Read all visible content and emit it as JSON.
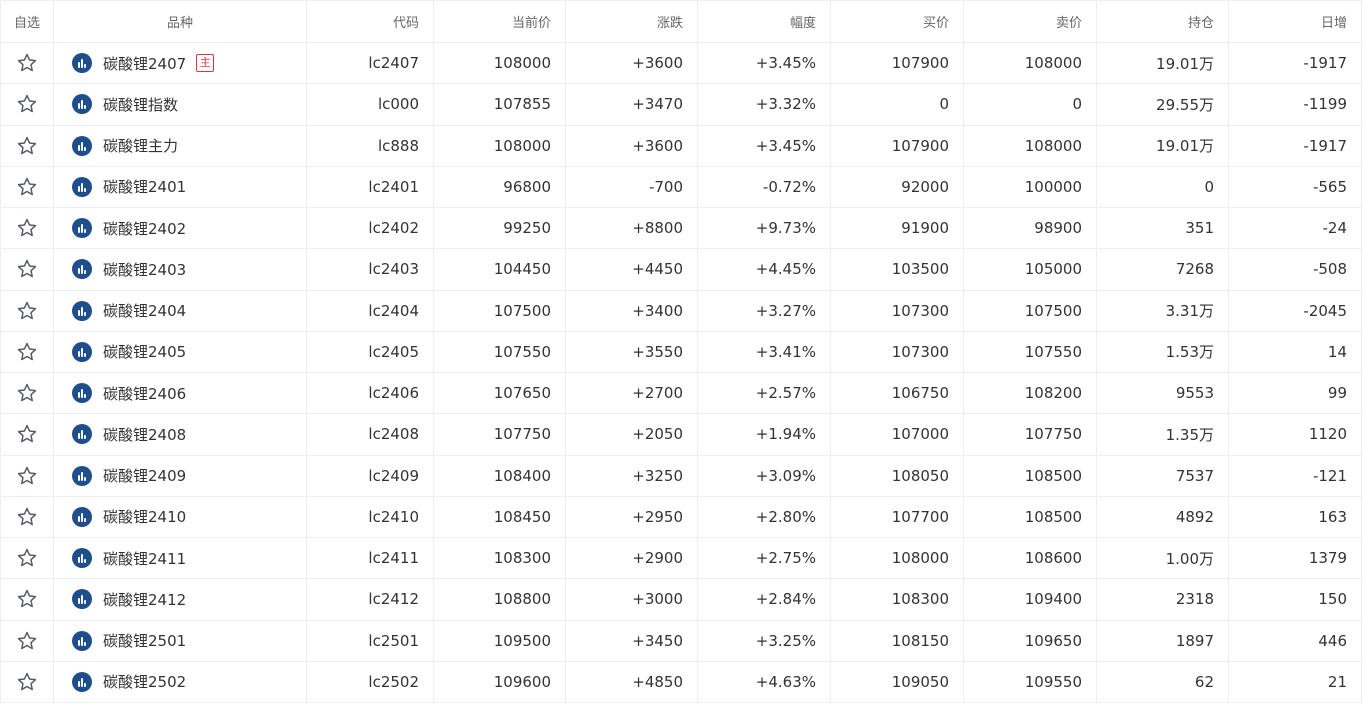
{
  "headers": {
    "fav": "自选",
    "name": "品种",
    "code": "代码",
    "price": "当前价",
    "change": "涨跌",
    "pct": "幅度",
    "bid": "买价",
    "ask": "卖价",
    "open_interest": "持仓",
    "daily_change": "日增"
  },
  "main_badge_label": "主",
  "icons": {
    "favorite": "star-outline-icon",
    "chart": "chart-icon"
  },
  "colors": {
    "up": "#e0334a",
    "down": "#0d9a7c",
    "neutral": "#333333",
    "icon_bg": "#1f4e8c"
  },
  "rows": [
    {
      "name": "碳酸锂2407",
      "main": true,
      "code": "lc2407",
      "price": "108000",
      "change": "+3600",
      "pct": "+3.45%",
      "bid": "107900",
      "ask": "108000",
      "oi": "19.01万",
      "daily": "-1917",
      "trend": "up"
    },
    {
      "name": "碳酸锂指数",
      "main": false,
      "code": "lc000",
      "price": "107855",
      "change": "+3470",
      "pct": "+3.32%",
      "bid": "0",
      "ask": "0",
      "oi": "29.55万",
      "daily": "-1199",
      "trend": "up"
    },
    {
      "name": "碳酸锂主力",
      "main": false,
      "code": "lc888",
      "price": "108000",
      "change": "+3600",
      "pct": "+3.45%",
      "bid": "107900",
      "ask": "108000",
      "oi": "19.01万",
      "daily": "-1917",
      "trend": "up"
    },
    {
      "name": "碳酸锂2401",
      "main": false,
      "code": "lc2401",
      "price": "96800",
      "change": "-700",
      "pct": "-0.72%",
      "bid": "92000",
      "ask": "100000",
      "oi": "0",
      "daily": "-565",
      "trend": "down"
    },
    {
      "name": "碳酸锂2402",
      "main": false,
      "code": "lc2402",
      "price": "99250",
      "change": "+8800",
      "pct": "+9.73%",
      "bid": "91900",
      "ask": "98900",
      "oi": "351",
      "daily": "-24",
      "trend": "up"
    },
    {
      "name": "碳酸锂2403",
      "main": false,
      "code": "lc2403",
      "price": "104450",
      "change": "+4450",
      "pct": "+4.45%",
      "bid": "103500",
      "ask": "105000",
      "oi": "7268",
      "daily": "-508",
      "trend": "up"
    },
    {
      "name": "碳酸锂2404",
      "main": false,
      "code": "lc2404",
      "price": "107500",
      "change": "+3400",
      "pct": "+3.27%",
      "bid": "107300",
      "ask": "107500",
      "oi": "3.31万",
      "daily": "-2045",
      "trend": "up"
    },
    {
      "name": "碳酸锂2405",
      "main": false,
      "code": "lc2405",
      "price": "107550",
      "change": "+3550",
      "pct": "+3.41%",
      "bid": "107300",
      "ask": "107550",
      "oi": "1.53万",
      "daily": "14",
      "trend": "up"
    },
    {
      "name": "碳酸锂2406",
      "main": false,
      "code": "lc2406",
      "price": "107650",
      "change": "+2700",
      "pct": "+2.57%",
      "bid": "106750",
      "ask": "108200",
      "oi": "9553",
      "daily": "99",
      "trend": "up"
    },
    {
      "name": "碳酸锂2408",
      "main": false,
      "code": "lc2408",
      "price": "107750",
      "change": "+2050",
      "pct": "+1.94%",
      "bid": "107000",
      "ask": "107750",
      "oi": "1.35万",
      "daily": "1120",
      "trend": "up"
    },
    {
      "name": "碳酸锂2409",
      "main": false,
      "code": "lc2409",
      "price": "108400",
      "change": "+3250",
      "pct": "+3.09%",
      "bid": "108050",
      "ask": "108500",
      "oi": "7537",
      "daily": "-121",
      "trend": "up"
    },
    {
      "name": "碳酸锂2410",
      "main": false,
      "code": "lc2410",
      "price": "108450",
      "change": "+2950",
      "pct": "+2.80%",
      "bid": "107700",
      "ask": "108500",
      "oi": "4892",
      "daily": "163",
      "trend": "up"
    },
    {
      "name": "碳酸锂2411",
      "main": false,
      "code": "lc2411",
      "price": "108300",
      "change": "+2900",
      "pct": "+2.75%",
      "bid": "108000",
      "ask": "108600",
      "oi": "1.00万",
      "daily": "1379",
      "trend": "up"
    },
    {
      "name": "碳酸锂2412",
      "main": false,
      "code": "lc2412",
      "price": "108800",
      "change": "+3000",
      "pct": "+2.84%",
      "bid": "108300",
      "ask": "109400",
      "oi": "2318",
      "daily": "150",
      "trend": "up"
    },
    {
      "name": "碳酸锂2501",
      "main": false,
      "code": "lc2501",
      "price": "109500",
      "change": "+3450",
      "pct": "+3.25%",
      "bid": "108150",
      "ask": "109650",
      "oi": "1897",
      "daily": "446",
      "trend": "up"
    },
    {
      "name": "碳酸锂2502",
      "main": false,
      "code": "lc2502",
      "price": "109600",
      "change": "+4850",
      "pct": "+4.63%",
      "bid": "109050",
      "ask": "109550",
      "oi": "62",
      "daily": "21",
      "trend": "up"
    }
  ]
}
